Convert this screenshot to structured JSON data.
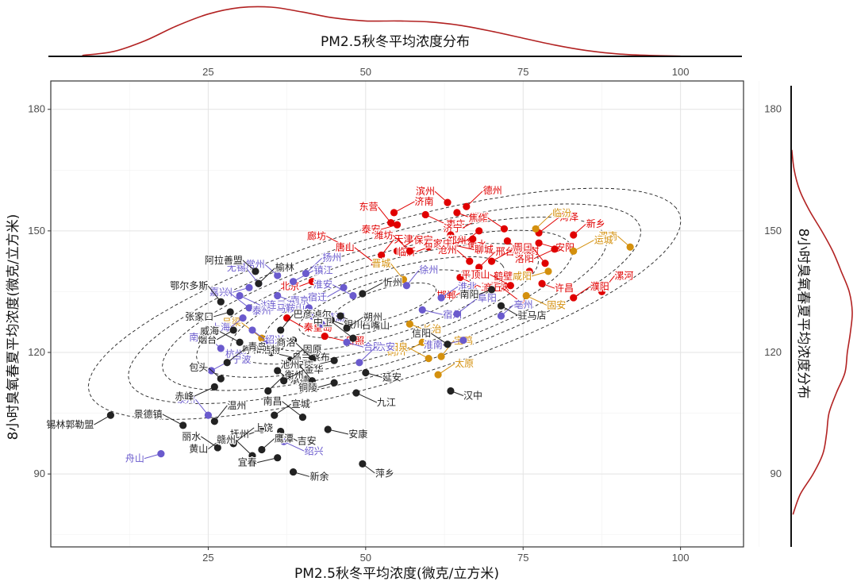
{
  "chart_data": {
    "type": "scatter",
    "xlabel": "PM2.5秋冬平均浓度(微克/立方米)",
    "ylabel": "8小时臭氧春夏平均浓度(微克/立方米)",
    "top_density_title": "PM2.5秋冬平均浓度分布",
    "right_density_title": "8小时臭氧春夏平均浓度分布",
    "xlim": [
      0,
      110
    ],
    "ylim": [
      72,
      187
    ],
    "x_ticks": [
      25,
      50,
      75,
      100
    ],
    "y_ticks": [
      90,
      120,
      150,
      180
    ],
    "grid": true,
    "density_color": "#b22222",
    "contour_style": "dashed",
    "series": [
      {
        "name": "red",
        "color": "#e00000",
        "points": [
          {
            "label": "滨州",
            "x": 63.0,
            "y": 157.0
          },
          {
            "label": "德州",
            "x": 66.0,
            "y": 156.0
          },
          {
            "label": "济南",
            "x": 54.5,
            "y": 154.5
          },
          {
            "label": "东营",
            "x": 54.0,
            "y": 152.0
          },
          {
            "label": "泰安",
            "x": 55.0,
            "y": 151.5
          },
          {
            "label": "枣庄",
            "x": 59.5,
            "y": 154.0
          },
          {
            "label": "淄博",
            "x": 64.5,
            "y": 154.5
          },
          {
            "label": "济宁",
            "x": 68.0,
            "y": 153.0
          },
          {
            "label": "廊坊",
            "x": 47.0,
            "y": 146.0
          },
          {
            "label": "天津",
            "x": 52.5,
            "y": 144.0
          },
          {
            "label": "保定",
            "x": 55.0,
            "y": 145.0
          },
          {
            "label": "唐山",
            "x": 51.5,
            "y": 142.0
          },
          {
            "label": "临沂",
            "x": 60.0,
            "y": 146.0
          },
          {
            "label": "衡水",
            "x": 63.5,
            "y": 149.0
          },
          {
            "label": "聊城",
            "x": 64.0,
            "y": 146.5
          },
          {
            "label": "郑州",
            "x": 68.0,
            "y": 150.0
          },
          {
            "label": "焦作",
            "x": 72.0,
            "y": 150.5
          },
          {
            "label": "菏泽",
            "x": 77.5,
            "y": 149.5
          },
          {
            "label": "新乡",
            "x": 83.0,
            "y": 149.0
          },
          {
            "label": "潍坊",
            "x": 57.0,
            "y": 145.0
          },
          {
            "label": "石家庄",
            "x": 67.0,
            "y": 148.0
          },
          {
            "label": "开封",
            "x": 72.5,
            "y": 147.5
          },
          {
            "label": "安阳",
            "x": 77.5,
            "y": 147.0
          },
          {
            "label": "洛阳",
            "x": 80.0,
            "y": 145.5
          },
          {
            "label": "沧州",
            "x": 66.5,
            "y": 142.5
          },
          {
            "label": "邢台",
            "x": 68.0,
            "y": 141.0
          },
          {
            "label": "聊城",
            "x": 70.0,
            "y": 142.5
          },
          {
            "label": "周口",
            "x": 78.5,
            "y": 142.0
          },
          {
            "label": "鹤壁",
            "x": 76.0,
            "y": 140.0
          },
          {
            "label": "三门峡",
            "x": 65.0,
            "y": 138.5
          },
          {
            "label": "许昌",
            "x": 78.0,
            "y": 137.0
          },
          {
            "label": "邯郸",
            "x": 67.0,
            "y": 136.5
          },
          {
            "label": "平顶山",
            "x": 73.0,
            "y": 136.5
          },
          {
            "label": "漯河",
            "x": 87.5,
            "y": 135.0
          },
          {
            "label": "濮阳",
            "x": 83.0,
            "y": 133.5
          },
          {
            "label": "商丘",
            "x": 75.0,
            "y": 132.0
          },
          {
            "label": "北京",
            "x": 41.5,
            "y": 137.5
          },
          {
            "label": "秦皇岛",
            "x": 37.5,
            "y": 128.5
          },
          {
            "label": "日照",
            "x": 43.5,
            "y": 124.0
          }
        ]
      },
      {
        "name": "orange",
        "color": "#d4900d",
        "points": [
          {
            "label": "渭南",
            "x": 92.0,
            "y": 146.0
          },
          {
            "label": "临汾",
            "x": 77.0,
            "y": 150.5
          },
          {
            "label": "运城",
            "x": 83.0,
            "y": 145.0
          },
          {
            "label": "晋城",
            "x": 56.0,
            "y": 138.0
          },
          {
            "label": "咸阳",
            "x": 79.0,
            "y": 140.0
          },
          {
            "label": "固安",
            "x": 75.5,
            "y": 134.0
          },
          {
            "label": "长治",
            "x": 57.0,
            "y": 127.0
          },
          {
            "label": "铜川",
            "x": 59.0,
            "y": 122.5
          },
          {
            "label": "阳泉",
            "x": 60.0,
            "y": 118.5
          },
          {
            "label": "宝鸡",
            "x": 62.0,
            "y": 119.0
          },
          {
            "label": "太原",
            "x": 61.5,
            "y": 114.5
          },
          {
            "label": "吕梁",
            "x": 33.5,
            "y": 123.5
          }
        ]
      },
      {
        "name": "purple",
        "color": "#6a5acd",
        "points": [
          {
            "label": "常州",
            "x": 36.0,
            "y": 139.0
          },
          {
            "label": "扬州",
            "x": 40.5,
            "y": 139.5
          },
          {
            "label": "镇江",
            "x": 38.5,
            "y": 137.5
          },
          {
            "label": "无锡",
            "x": 33.0,
            "y": 137.0
          },
          {
            "label": "苏州",
            "x": 31.5,
            "y": 136.0
          },
          {
            "label": "湖州",
            "x": 30.0,
            "y": 134.0
          },
          {
            "label": "南京",
            "x": 36.0,
            "y": 134.0
          },
          {
            "label": "宿迁",
            "x": 46.5,
            "y": 136.0
          },
          {
            "label": "淮安",
            "x": 48.0,
            "y": 134.0
          },
          {
            "label": "徐州",
            "x": 56.5,
            "y": 136.5
          },
          {
            "label": "淮北",
            "x": 62.0,
            "y": 133.5
          },
          {
            "label": "嘉兴",
            "x": 31.5,
            "y": 131.0
          },
          {
            "label": "泰州",
            "x": 37.0,
            "y": 131.5
          },
          {
            "label": "芜湖",
            "x": 41.0,
            "y": 131.0
          },
          {
            "label": "宿州",
            "x": 59.0,
            "y": 130.5
          },
          {
            "label": "上海",
            "x": 30.5,
            "y": 128.5
          },
          {
            "label": "连云港",
            "x": 41.5,
            "y": 129.0
          },
          {
            "label": "阜阳",
            "x": 64.5,
            "y": 129.5
          },
          {
            "label": "亳州",
            "x": 71.5,
            "y": 129.0
          },
          {
            "label": "马鞍山",
            "x": 43.0,
            "y": 127.0
          },
          {
            "label": "淮南",
            "x": 65.5,
            "y": 123.0
          },
          {
            "label": "绍兴",
            "x": 32.0,
            "y": 125.5
          },
          {
            "label": "合肥",
            "x": 47.0,
            "y": 122.5
          },
          {
            "label": "杭州",
            "x": 34.0,
            "y": 122.0
          },
          {
            "label": "南通",
            "x": 27.0,
            "y": 121.0
          },
          {
            "label": "六安",
            "x": 49.0,
            "y": 117.5
          },
          {
            "label": "宁波",
            "x": 25.5,
            "y": 115.5
          },
          {
            "label": "泰州",
            "x": 25.0,
            "y": 104.5
          },
          {
            "label": "舟山",
            "x": 17.5,
            "y": 95.0
          },
          {
            "label": "绍兴",
            "x": 37.0,
            "y": 98.0
          }
        ]
      },
      {
        "name": "black",
        "color": "#222222",
        "points": [
          {
            "label": "阿拉善盟",
            "x": 32.5,
            "y": 140.0
          },
          {
            "label": "榆林",
            "x": 33.0,
            "y": 137.0
          },
          {
            "label": "忻州",
            "x": 49.5,
            "y": 134.5
          },
          {
            "label": "鄂尔多斯",
            "x": 27.0,
            "y": 132.5
          },
          {
            "label": "张家口",
            "x": 28.5,
            "y": 130.0
          },
          {
            "label": "石嘴山",
            "x": 46.0,
            "y": 129.0
          },
          {
            "label": "银川",
            "x": 44.5,
            "y": 128.0
          },
          {
            "label": "烟台",
            "x": 29.0,
            "y": 125.5
          },
          {
            "label": "威海",
            "x": 30.0,
            "y": 122.5
          },
          {
            "label": "巴彦淖尔",
            "x": 36.5,
            "y": 125.5
          },
          {
            "label": "朔州",
            "x": 47.0,
            "y": 126.0
          },
          {
            "label": "中卫",
            "x": 48.0,
            "y": 123.5
          },
          {
            "label": "南阳",
            "x": 70.0,
            "y": 135.5
          },
          {
            "label": "驻马店",
            "x": 71.5,
            "y": 131.5
          },
          {
            "label": "乌兰察布",
            "x": 35.0,
            "y": 120.0
          },
          {
            "label": "呼和浩特",
            "x": 38.5,
            "y": 123.0
          },
          {
            "label": "信阳",
            "x": 63.0,
            "y": 122.0
          },
          {
            "label": "青岛",
            "x": 28.0,
            "y": 117.5
          },
          {
            "label": "固原",
            "x": 38.0,
            "y": 118.0
          },
          {
            "label": "商洛",
            "x": 41.5,
            "y": 118.5
          },
          {
            "label": "安庆",
            "x": 45.0,
            "y": 118.0
          },
          {
            "label": "承德",
            "x": 36.0,
            "y": 115.5
          },
          {
            "label": "延安",
            "x": 50.0,
            "y": 115.0
          },
          {
            "label": "赤峰",
            "x": 26.0,
            "y": 111.5
          },
          {
            "label": "包头",
            "x": 27.0,
            "y": 113.5
          },
          {
            "label": "衡州",
            "x": 34.5,
            "y": 110.5
          },
          {
            "label": "金华",
            "x": 37.0,
            "y": 113.0
          },
          {
            "label": "池州",
            "x": 41.5,
            "y": 113.0
          },
          {
            "label": "铜陵",
            "x": 45.0,
            "y": 112.5
          },
          {
            "label": "九江",
            "x": 48.5,
            "y": 110.0
          },
          {
            "label": "汉中",
            "x": 63.5,
            "y": 110.5
          },
          {
            "label": "锡林郭勒盟",
            "x": 9.5,
            "y": 104.5
          },
          {
            "label": "景德镇",
            "x": 21.0,
            "y": 102.0
          },
          {
            "label": "温州",
            "x": 26.0,
            "y": 103.0
          },
          {
            "label": "宣城",
            "x": 35.5,
            "y": 104.5
          },
          {
            "label": "南昌",
            "x": 40.0,
            "y": 104.0
          },
          {
            "label": "抚州",
            "x": 33.5,
            "y": 101.0
          },
          {
            "label": "吉安",
            "x": 36.5,
            "y": 100.5
          },
          {
            "label": "安康",
            "x": 44.0,
            "y": 101.0
          },
          {
            "label": "黄山",
            "x": 27.0,
            "y": 98.5
          },
          {
            "label": "丽水",
            "x": 26.5,
            "y": 96.5
          },
          {
            "label": "上饶",
            "x": 29.0,
            "y": 97.5
          },
          {
            "label": "鹰潭",
            "x": 33.5,
            "y": 96.0
          },
          {
            "label": "赣州",
            "x": 32.0,
            "y": 94.5
          },
          {
            "label": "宜春",
            "x": 36.0,
            "y": 94.0
          },
          {
            "label": "萍乡",
            "x": 49.5,
            "y": 92.5
          },
          {
            "label": "新余",
            "x": 38.5,
            "y": 90.5
          }
        ]
      }
    ],
    "top_density": {
      "x": [
        5,
        10,
        15,
        20,
        25,
        30,
        35,
        40,
        45,
        50,
        55,
        60,
        65,
        70,
        75,
        80,
        85,
        90,
        95,
        100
      ],
      "density": [
        0.02,
        0.1,
        0.32,
        0.62,
        0.86,
        0.99,
        1.0,
        0.9,
        0.78,
        0.72,
        0.72,
        0.7,
        0.63,
        0.51,
        0.37,
        0.23,
        0.12,
        0.05,
        0.02,
        0.005
      ]
    },
    "right_density": {
      "y": [
        80,
        85,
        90,
        95,
        100,
        105,
        110,
        115,
        120,
        125,
        130,
        135,
        140,
        145,
        150,
        155,
        160,
        165,
        170
      ],
      "density": [
        0.03,
        0.15,
        0.36,
        0.52,
        0.58,
        0.62,
        0.74,
        0.88,
        0.92,
        0.97,
        1.0,
        0.95,
        0.82,
        0.68,
        0.5,
        0.3,
        0.14,
        0.05,
        0.01
      ]
    },
    "contours": {
      "center": [
        53,
        132
      ],
      "angle_deg": 27,
      "radii": [
        [
          52,
          18
        ],
        [
          45,
          15.5
        ],
        [
          39,
          13.5
        ],
        [
          33,
          11.5
        ],
        [
          27,
          9.5
        ],
        [
          21,
          7.5
        ],
        [
          15,
          5.5
        ],
        [
          9,
          3.5
        ]
      ]
    }
  }
}
